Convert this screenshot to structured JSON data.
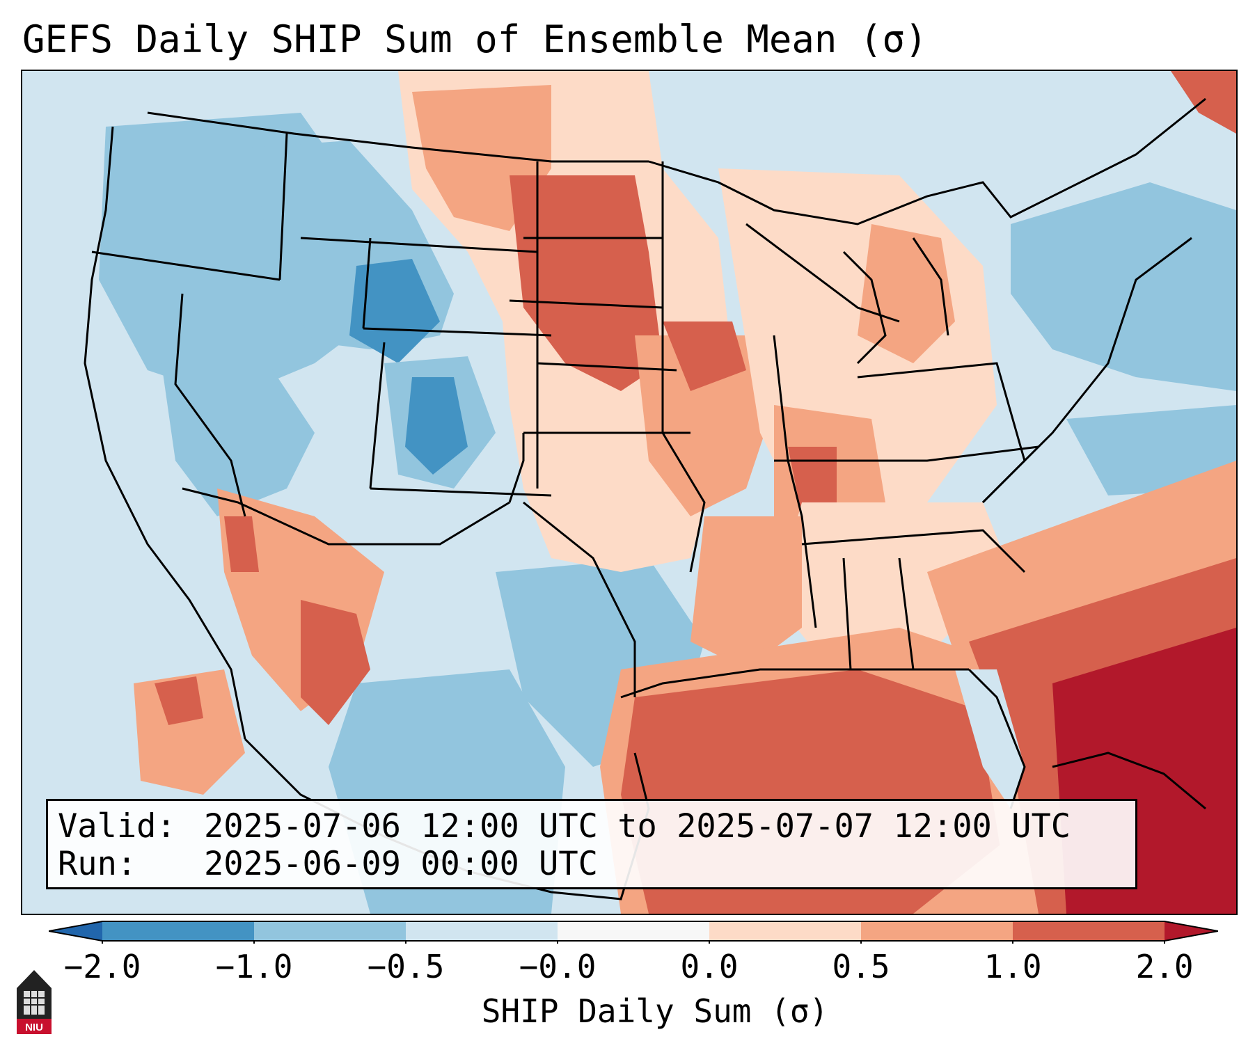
{
  "title": "GEFS Daily SHIP Sum of Ensemble Mean (σ)",
  "info": {
    "valid_label": "Valid:",
    "valid_value": "2025-07-06 12:00 UTC to 2025-07-07 12:00 UTC",
    "run_label": "Run:",
    "run_value": "2025-06-09 00:00 UTC"
  },
  "colorbar": {
    "label": "SHIP Daily Sum (σ)",
    "ticks": [
      "−2.0",
      "−1.0",
      "−0.5",
      "−0.0",
      "0.0",
      "0.5",
      "1.0",
      "2.0"
    ],
    "bin_colors": [
      "#4393c3",
      "#92c5de",
      "#d1e5f0",
      "#f7f7f7",
      "#fddbc7",
      "#f4a582",
      "#d6604d"
    ],
    "under_color": "#2166ac",
    "over_color": "#b2182b"
  },
  "map_legend_colors": {
    "strong_negative": "#4393c3",
    "moderate_negative": "#92c5de",
    "weak_negative": "#d1e5f0",
    "weak_positive": "#fddbc7",
    "moderate_positive": "#f4a582",
    "strong_positive": "#d6604d",
    "extreme_positive": "#b2182b"
  },
  "logo": {
    "text": "NIU"
  }
}
